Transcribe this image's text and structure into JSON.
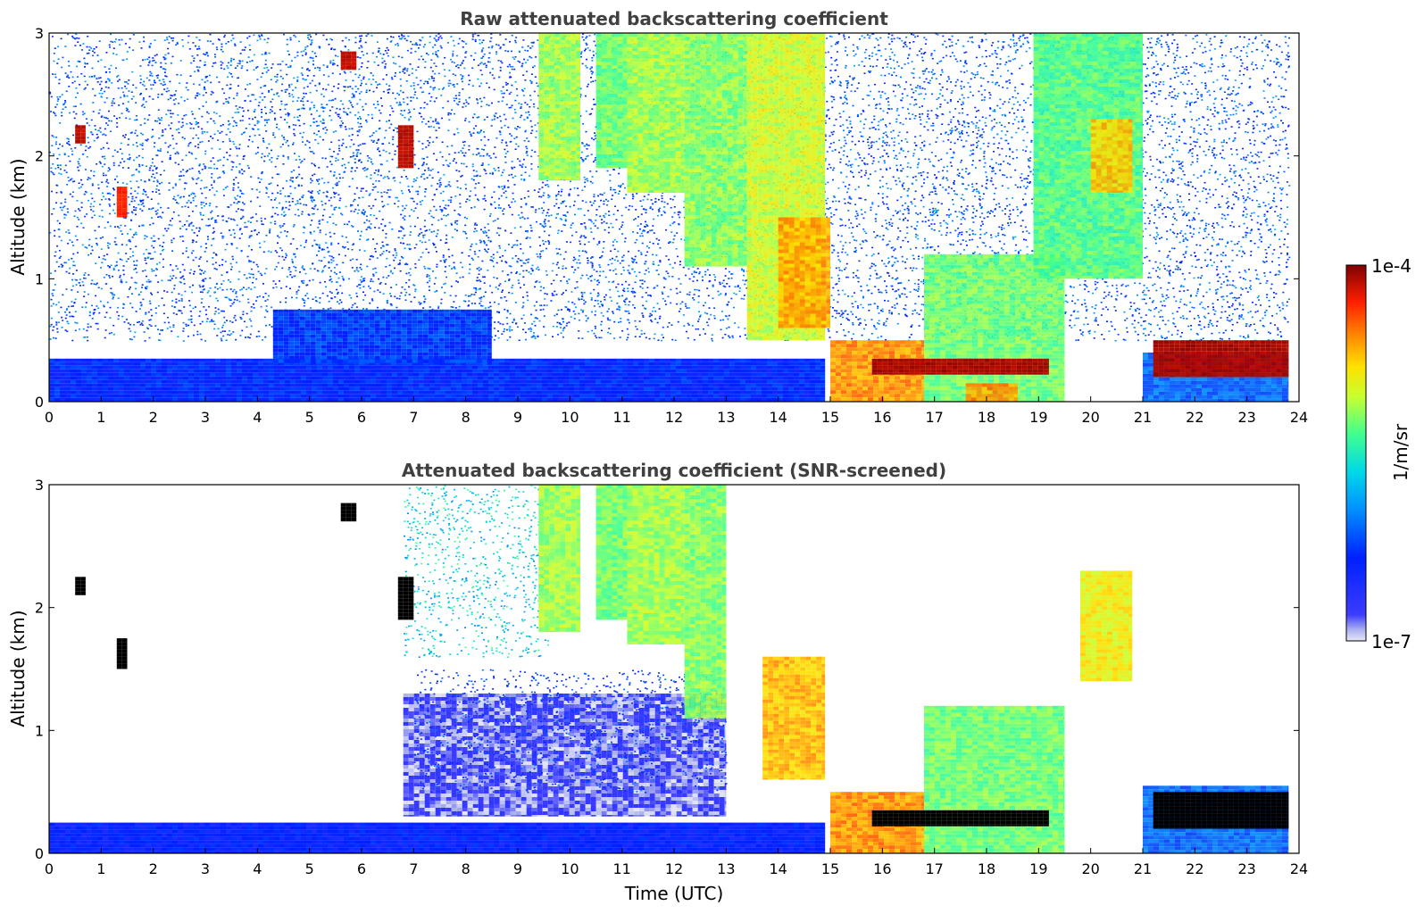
{
  "chart_data": [
    {
      "type": "heatmap",
      "title": "Raw attenuated backscattering coefficient",
      "xlabel": "",
      "ylabel": "Altitude (km)",
      "xlim": [
        0,
        24
      ],
      "ylim": [
        0,
        3
      ],
      "x_ticks": [
        "0",
        "1",
        "2",
        "3",
        "4",
        "5",
        "6",
        "7",
        "8",
        "9",
        "10",
        "11",
        "12",
        "13",
        "14",
        "15",
        "16",
        "17",
        "18",
        "19",
        "20",
        "21",
        "22",
        "23",
        "24"
      ],
      "y_ticks": [
        "0",
        "1",
        "2",
        "3"
      ],
      "features": [
        {
          "kind": "noise_field",
          "x": [
            0,
            23.8
          ],
          "y": [
            0.5,
            3
          ],
          "level": 0.28
        },
        {
          "kind": "boundary_layer",
          "x": [
            0,
            14.9
          ],
          "y": [
            0,
            0.35
          ],
          "level": 0.22
        },
        {
          "kind": "boundary_layer",
          "x": [
            4.3,
            8.5
          ],
          "y": [
            0.3,
            0.75
          ],
          "level": 0.25
        },
        {
          "kind": "cloud",
          "x": [
            9.4,
            10.2
          ],
          "y": [
            1.8,
            3
          ],
          "level": 0.62
        },
        {
          "kind": "cloud",
          "x": [
            10.5,
            11.1
          ],
          "y": [
            1.9,
            3
          ],
          "level": 0.58
        },
        {
          "kind": "cloud",
          "x": [
            11.1,
            12.2
          ],
          "y": [
            1.7,
            3
          ],
          "level": 0.62
        },
        {
          "kind": "cloud",
          "x": [
            12.2,
            13.4
          ],
          "y": [
            1.1,
            3
          ],
          "level": 0.6
        },
        {
          "kind": "cloud",
          "x": [
            13.4,
            14.9
          ],
          "y": [
            0.5,
            3
          ],
          "level": 0.66
        },
        {
          "kind": "cloud",
          "x": [
            14.0,
            15.0
          ],
          "y": [
            0.6,
            1.5
          ],
          "level": 0.78
        },
        {
          "kind": "cloud",
          "x": [
            15.0,
            16.8
          ],
          "y": [
            0,
            0.5
          ],
          "level": 0.8
        },
        {
          "kind": "cloud",
          "x": [
            16.8,
            19.5
          ],
          "y": [
            0,
            1.2
          ],
          "level": 0.58
        },
        {
          "kind": "cloud",
          "x": [
            17.6,
            18.6
          ],
          "y": [
            0,
            0.15
          ],
          "level": 0.8
        },
        {
          "kind": "cloud",
          "x": [
            18.9,
            21.0
          ],
          "y": [
            1.0,
            3
          ],
          "level": 0.56
        },
        {
          "kind": "cloud",
          "x": [
            20.0,
            20.8
          ],
          "y": [
            1.7,
            2.3
          ],
          "level": 0.75
        },
        {
          "kind": "cloud",
          "x": [
            21.0,
            23.8
          ],
          "y": [
            0,
            0.4
          ],
          "level": 0.3
        },
        {
          "kind": "dense_layer",
          "x": [
            15.8,
            19.2
          ],
          "y": [
            0.22,
            0.35
          ],
          "level": 0.97
        },
        {
          "kind": "dense_layer",
          "x": [
            21.2,
            23.8
          ],
          "y": [
            0.2,
            0.5
          ],
          "level": 0.97
        },
        {
          "kind": "speck",
          "x": [
            0.5,
            0.7
          ],
          "y": [
            2.1,
            2.25
          ],
          "level": 0.95
        },
        {
          "kind": "speck",
          "x": [
            5.6,
            5.9
          ],
          "y": [
            2.7,
            2.85
          ],
          "level": 0.95
        },
        {
          "kind": "speck",
          "x": [
            6.7,
            7.0
          ],
          "y": [
            1.9,
            2.25
          ],
          "level": 0.95
        },
        {
          "kind": "speck",
          "x": [
            1.3,
            1.5
          ],
          "y": [
            1.5,
            1.75
          ],
          "level": 0.9
        }
      ]
    },
    {
      "type": "heatmap",
      "title": "Attenuated backscattering coefficient (SNR-screened)",
      "xlabel": "Time (UTC)",
      "ylabel": "Altitude (km)",
      "xlim": [
        0,
        24
      ],
      "ylim": [
        0,
        3
      ],
      "x_ticks": [
        "0",
        "1",
        "2",
        "3",
        "4",
        "5",
        "6",
        "7",
        "8",
        "9",
        "10",
        "11",
        "12",
        "13",
        "14",
        "15",
        "16",
        "17",
        "18",
        "19",
        "20",
        "21",
        "22",
        "23",
        "24"
      ],
      "y_ticks": [
        "0",
        "1",
        "2",
        "3"
      ],
      "features": [
        {
          "kind": "boundary_layer",
          "x": [
            0,
            14.9
          ],
          "y": [
            0,
            0.25
          ],
          "level": 0.2
        },
        {
          "kind": "faint_layer",
          "x": [
            6.8,
            13.0
          ],
          "y": [
            0.3,
            1.3
          ],
          "level": 0.05
        },
        {
          "kind": "noise_field",
          "x": [
            7.0,
            13.0
          ],
          "y": [
            0.5,
            1.5
          ],
          "level": 0.22
        },
        {
          "kind": "noise_field",
          "x": [
            6.8,
            9.6
          ],
          "y": [
            1.6,
            3
          ],
          "level": 0.45
        },
        {
          "kind": "cloud",
          "x": [
            9.4,
            10.2
          ],
          "y": [
            1.8,
            3
          ],
          "level": 0.62
        },
        {
          "kind": "cloud",
          "x": [
            10.5,
            11.1
          ],
          "y": [
            1.9,
            3
          ],
          "level": 0.58
        },
        {
          "kind": "cloud",
          "x": [
            11.1,
            12.2
          ],
          "y": [
            1.7,
            3
          ],
          "level": 0.62
        },
        {
          "kind": "cloud",
          "x": [
            12.2,
            13.0
          ],
          "y": [
            1.1,
            3
          ],
          "level": 0.6
        },
        {
          "kind": "cloud",
          "x": [
            13.7,
            14.9
          ],
          "y": [
            0.6,
            1.6
          ],
          "level": 0.76
        },
        {
          "kind": "cloud",
          "x": [
            15.0,
            16.8
          ],
          "y": [
            0,
            0.5
          ],
          "level": 0.8
        },
        {
          "kind": "cloud",
          "x": [
            16.8,
            19.5
          ],
          "y": [
            0,
            1.2
          ],
          "level": 0.58
        },
        {
          "kind": "cloud",
          "x": [
            19.8,
            20.8
          ],
          "y": [
            1.4,
            2.3
          ],
          "level": 0.7
        },
        {
          "kind": "cloud",
          "x": [
            21.0,
            23.8
          ],
          "y": [
            0,
            0.55
          ],
          "level": 0.3
        },
        {
          "kind": "dense_layer",
          "x": [
            15.8,
            19.2
          ],
          "y": [
            0.22,
            0.35
          ],
          "level": 1.02
        },
        {
          "kind": "dense_layer",
          "x": [
            21.2,
            23.8
          ],
          "y": [
            0.2,
            0.5
          ],
          "level": 1.02
        },
        {
          "kind": "speck",
          "x": [
            0.5,
            0.7
          ],
          "y": [
            2.1,
            2.25
          ],
          "level": 1.02
        },
        {
          "kind": "speck",
          "x": [
            5.6,
            5.9
          ],
          "y": [
            2.7,
            2.85
          ],
          "level": 1.02
        },
        {
          "kind": "speck",
          "x": [
            6.7,
            7.0
          ],
          "y": [
            1.9,
            2.25
          ],
          "level": 1.02
        },
        {
          "kind": "speck",
          "x": [
            1.3,
            1.5
          ],
          "y": [
            1.5,
            1.75
          ],
          "level": 1.02
        }
      ]
    }
  ],
  "colorbar": {
    "label": "1/m/sr",
    "max_label": "1e-4",
    "min_label": "1e-7",
    "colormap": "jet"
  }
}
